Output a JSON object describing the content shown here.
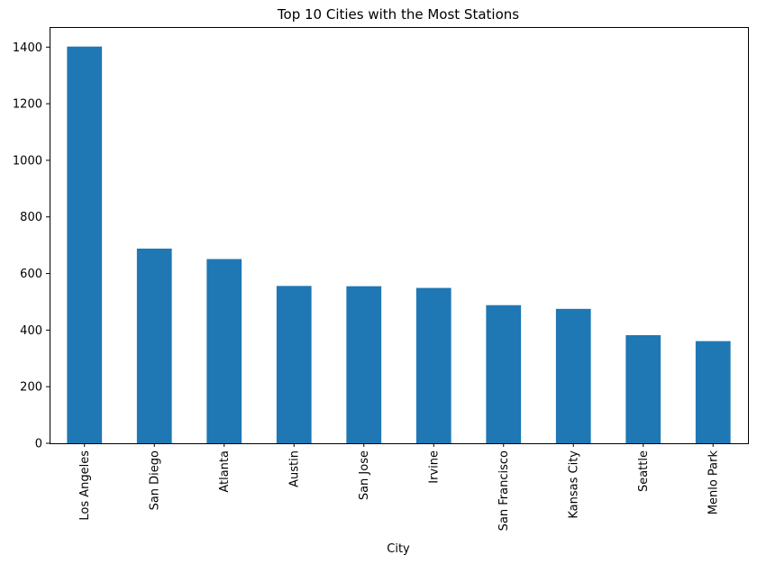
{
  "chart_data": {
    "type": "bar",
    "title": "Top 10 Cities with the Most Stations",
    "xlabel": "City",
    "ylabel": "",
    "categories": [
      "Los Angeles",
      "San Diego",
      "Atlanta",
      "Austin",
      "San Jose",
      "Irvine",
      "San Francisco",
      "Kansas City",
      "Seattle",
      "Menlo Park"
    ],
    "values": [
      1402,
      688,
      651,
      556,
      555,
      549,
      488,
      475,
      382,
      361
    ],
    "ylim": [
      0,
      1471
    ],
    "yticks": [
      0,
      200,
      400,
      600,
      800,
      1000,
      1200,
      1400
    ],
    "bar_color": "#1f77b4",
    "grid": false,
    "legend": false
  }
}
